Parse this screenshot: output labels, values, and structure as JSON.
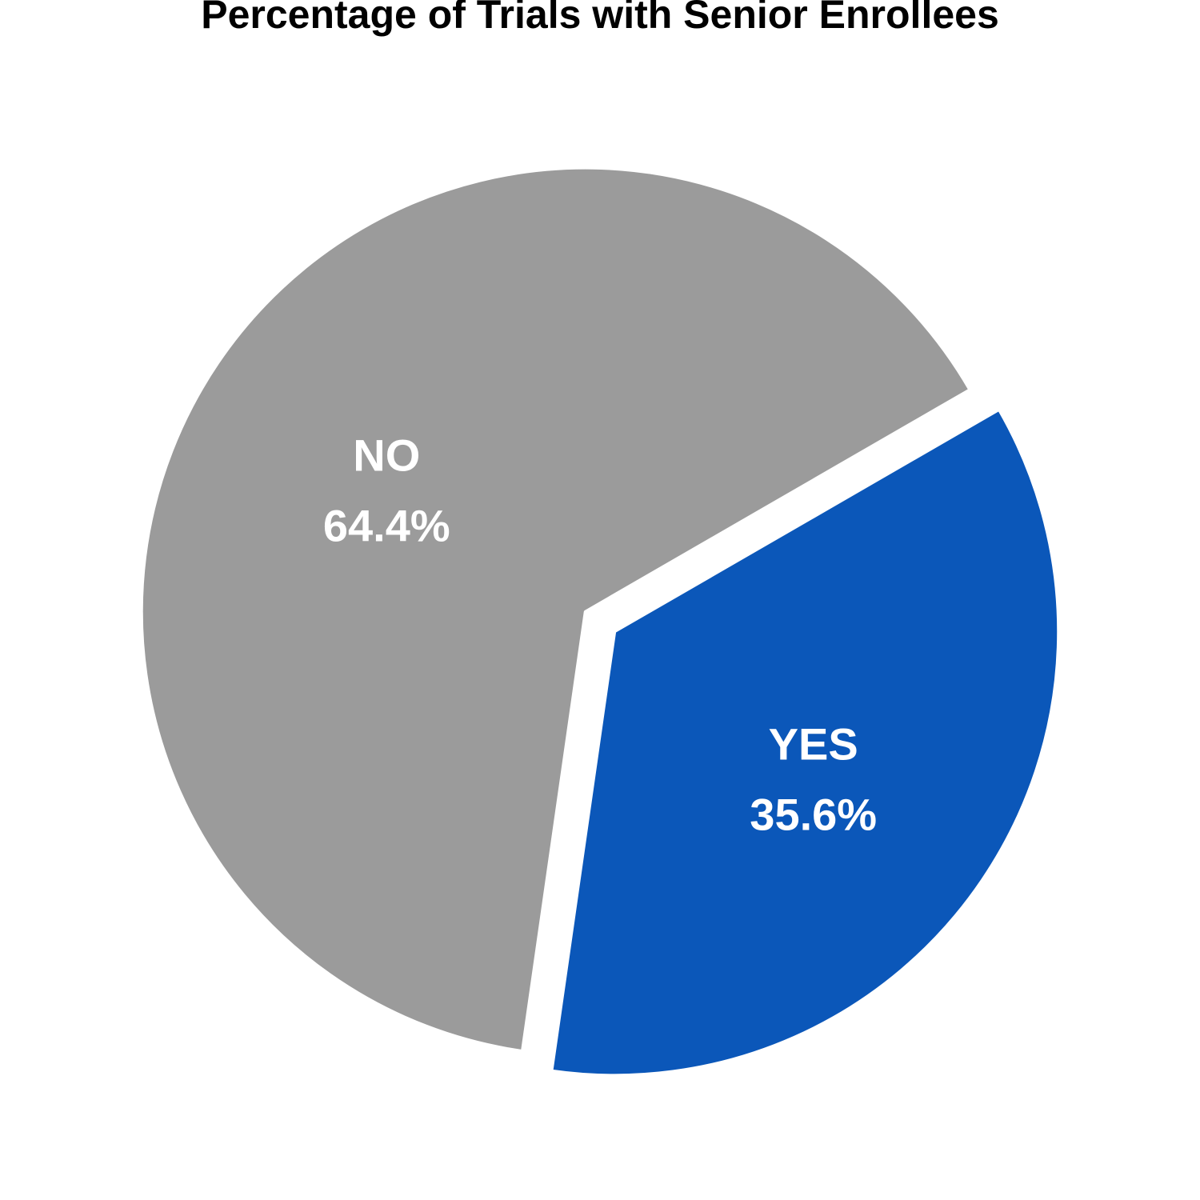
{
  "chart_data": {
    "type": "pie",
    "title": "Percentage of Trials with Senior Enrollees",
    "slices": [
      {
        "label": "YES",
        "value": 35.6,
        "display": "35.6%",
        "color": "#0b57b9"
      },
      {
        "label": "NO",
        "value": 64.4,
        "display": "64.4%",
        "color": "#9b9b9b"
      }
    ],
    "legend": false
  }
}
